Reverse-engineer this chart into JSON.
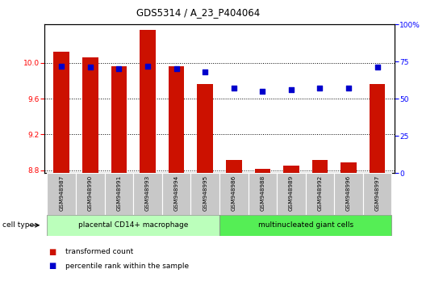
{
  "title": "GDS5314 / A_23_P404064",
  "samples": [
    "GSM948987",
    "GSM948990",
    "GSM948991",
    "GSM948993",
    "GSM948994",
    "GSM948995",
    "GSM948986",
    "GSM948988",
    "GSM948989",
    "GSM948992",
    "GSM948996",
    "GSM948997"
  ],
  "transformed_count": [
    10.12,
    10.06,
    9.96,
    10.37,
    9.96,
    9.76,
    8.92,
    8.82,
    8.85,
    8.92,
    8.89,
    9.76
  ],
  "percentile_rank": [
    72,
    71,
    70,
    72,
    70,
    68,
    57,
    55,
    56,
    57,
    57,
    71
  ],
  "group1_count": 6,
  "group2_count": 6,
  "group1_label": "placental CD14+ macrophage",
  "group2_label": "multinucleated giant cells",
  "cell_type_label": "cell type",
  "bar_color": "#cc1100",
  "dot_color": "#0000cc",
  "ylim_left": [
    8.77,
    10.43
  ],
  "ylim_right": [
    0,
    100
  ],
  "yticks_left": [
    8.8,
    9.2,
    9.6,
    10.0
  ],
  "yticks_right": [
    0,
    25,
    50,
    75,
    100
  ],
  "group1_color": "#bbffbb",
  "group2_color": "#55ee55",
  "legend_tc": "transformed count",
  "legend_pr": "percentile rank within the sample",
  "bar_width": 0.55,
  "dot_size": 18
}
